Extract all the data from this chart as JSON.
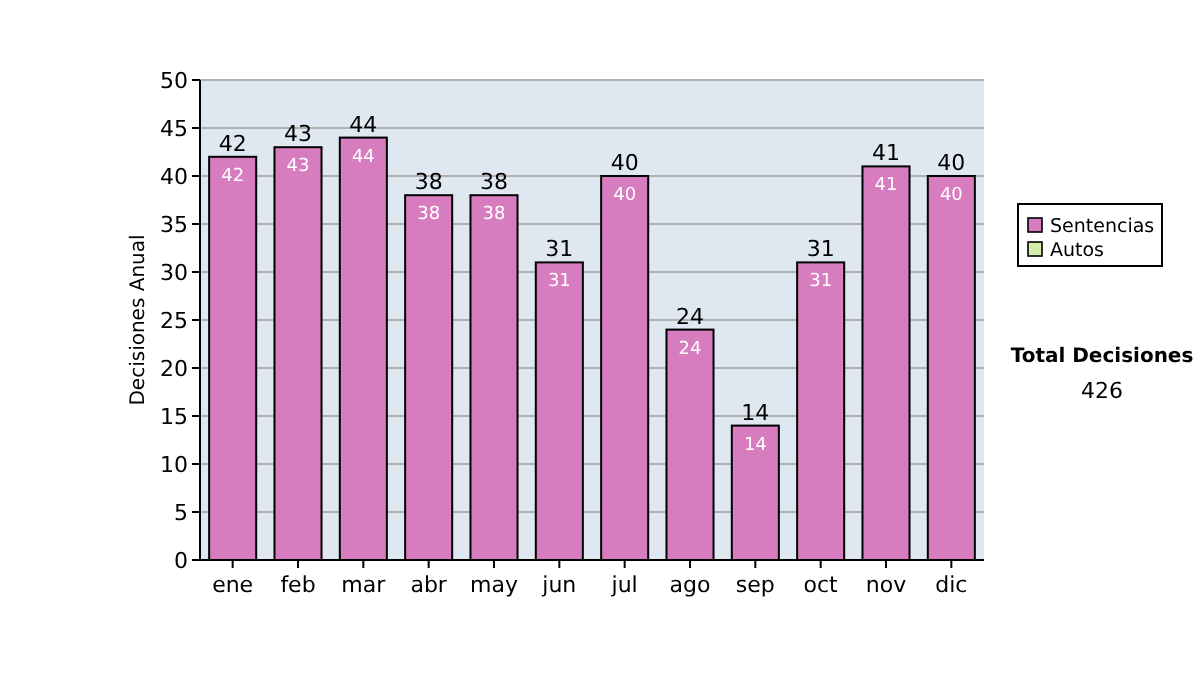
{
  "chart_data": {
    "type": "bar",
    "stacked": true,
    "ylabel": "Decisiones Anual",
    "categories": [
      "ene",
      "feb",
      "mar",
      "abr",
      "may",
      "jun",
      "jul",
      "ago",
      "sep",
      "oct",
      "nov",
      "dic"
    ],
    "series": [
      {
        "name": "Sentencias",
        "color": "#d87cc0",
        "values": [
          42,
          43,
          44,
          38,
          38,
          31,
          40,
          24,
          14,
          31,
          41,
          40
        ],
        "value_labels": [
          "42",
          "43",
          "44",
          "38",
          "38",
          "31",
          "40",
          "24",
          "14",
          "31",
          "41",
          "40"
        ]
      },
      {
        "name": "Autos",
        "color": "#d4edaa",
        "values": [
          0,
          0,
          0,
          0,
          0,
          0,
          0,
          0,
          0,
          0,
          0,
          0
        ]
      }
    ],
    "totals": [
      "42",
      "43",
      "44",
      "38",
      "38",
      "31",
      "40",
      "24",
      "14",
      "31",
      "41",
      "40"
    ],
    "ylim": [
      0,
      50
    ],
    "yticks": [
      0,
      5,
      10,
      15,
      20,
      25,
      30,
      35,
      40,
      45,
      50
    ],
    "grid": "y",
    "legend": "right",
    "annotations": [
      "Total Decisiones",
      "426"
    ]
  }
}
